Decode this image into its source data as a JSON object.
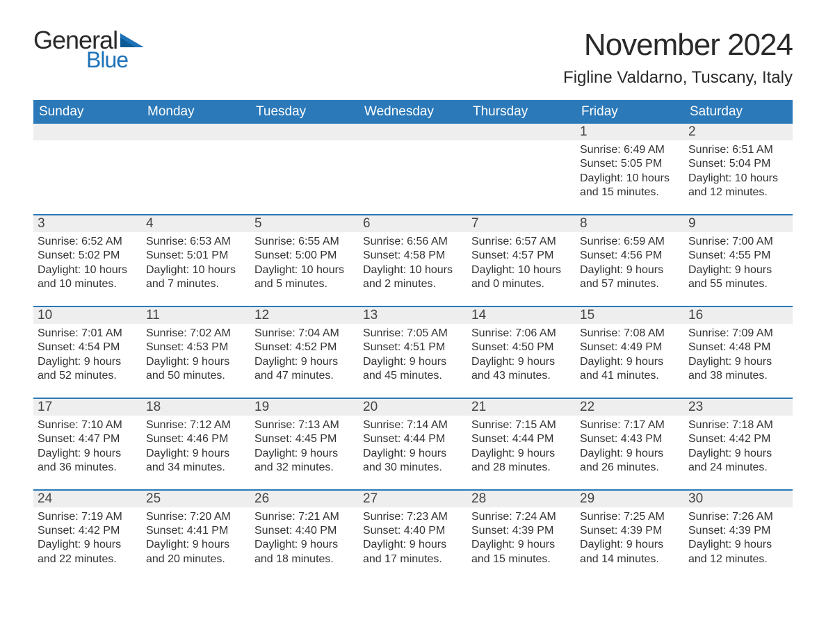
{
  "logo": {
    "general": "General",
    "blue": "Blue"
  },
  "title": "November 2024",
  "location": "Figline Valdarno, Tuscany, Italy",
  "colors": {
    "header_bg": "#2b79b9",
    "header_text": "#ffffff",
    "daynum_bg": "#eeeeee",
    "border": "#2b79b9",
    "logo_blue": "#1d72b8",
    "body_text": "#333333",
    "background": "#ffffff"
  },
  "day_names": [
    "Sunday",
    "Monday",
    "Tuesday",
    "Wednesday",
    "Thursday",
    "Friday",
    "Saturday"
  ],
  "weeks": [
    [
      null,
      null,
      null,
      null,
      null,
      {
        "d": "1",
        "sr": "Sunrise: 6:49 AM",
        "ss": "Sunset: 5:05 PM",
        "dl1": "Daylight: 10 hours",
        "dl2": "and 15 minutes."
      },
      {
        "d": "2",
        "sr": "Sunrise: 6:51 AM",
        "ss": "Sunset: 5:04 PM",
        "dl1": "Daylight: 10 hours",
        "dl2": "and 12 minutes."
      }
    ],
    [
      {
        "d": "3",
        "sr": "Sunrise: 6:52 AM",
        "ss": "Sunset: 5:02 PM",
        "dl1": "Daylight: 10 hours",
        "dl2": "and 10 minutes."
      },
      {
        "d": "4",
        "sr": "Sunrise: 6:53 AM",
        "ss": "Sunset: 5:01 PM",
        "dl1": "Daylight: 10 hours",
        "dl2": "and 7 minutes."
      },
      {
        "d": "5",
        "sr": "Sunrise: 6:55 AM",
        "ss": "Sunset: 5:00 PM",
        "dl1": "Daylight: 10 hours",
        "dl2": "and 5 minutes."
      },
      {
        "d": "6",
        "sr": "Sunrise: 6:56 AM",
        "ss": "Sunset: 4:58 PM",
        "dl1": "Daylight: 10 hours",
        "dl2": "and 2 minutes."
      },
      {
        "d": "7",
        "sr": "Sunrise: 6:57 AM",
        "ss": "Sunset: 4:57 PM",
        "dl1": "Daylight: 10 hours",
        "dl2": "and 0 minutes."
      },
      {
        "d": "8",
        "sr": "Sunrise: 6:59 AM",
        "ss": "Sunset: 4:56 PM",
        "dl1": "Daylight: 9 hours",
        "dl2": "and 57 minutes."
      },
      {
        "d": "9",
        "sr": "Sunrise: 7:00 AM",
        "ss": "Sunset: 4:55 PM",
        "dl1": "Daylight: 9 hours",
        "dl2": "and 55 minutes."
      }
    ],
    [
      {
        "d": "10",
        "sr": "Sunrise: 7:01 AM",
        "ss": "Sunset: 4:54 PM",
        "dl1": "Daylight: 9 hours",
        "dl2": "and 52 minutes."
      },
      {
        "d": "11",
        "sr": "Sunrise: 7:02 AM",
        "ss": "Sunset: 4:53 PM",
        "dl1": "Daylight: 9 hours",
        "dl2": "and 50 minutes."
      },
      {
        "d": "12",
        "sr": "Sunrise: 7:04 AM",
        "ss": "Sunset: 4:52 PM",
        "dl1": "Daylight: 9 hours",
        "dl2": "and 47 minutes."
      },
      {
        "d": "13",
        "sr": "Sunrise: 7:05 AM",
        "ss": "Sunset: 4:51 PM",
        "dl1": "Daylight: 9 hours",
        "dl2": "and 45 minutes."
      },
      {
        "d": "14",
        "sr": "Sunrise: 7:06 AM",
        "ss": "Sunset: 4:50 PM",
        "dl1": "Daylight: 9 hours",
        "dl2": "and 43 minutes."
      },
      {
        "d": "15",
        "sr": "Sunrise: 7:08 AM",
        "ss": "Sunset: 4:49 PM",
        "dl1": "Daylight: 9 hours",
        "dl2": "and 41 minutes."
      },
      {
        "d": "16",
        "sr": "Sunrise: 7:09 AM",
        "ss": "Sunset: 4:48 PM",
        "dl1": "Daylight: 9 hours",
        "dl2": "and 38 minutes."
      }
    ],
    [
      {
        "d": "17",
        "sr": "Sunrise: 7:10 AM",
        "ss": "Sunset: 4:47 PM",
        "dl1": "Daylight: 9 hours",
        "dl2": "and 36 minutes."
      },
      {
        "d": "18",
        "sr": "Sunrise: 7:12 AM",
        "ss": "Sunset: 4:46 PM",
        "dl1": "Daylight: 9 hours",
        "dl2": "and 34 minutes."
      },
      {
        "d": "19",
        "sr": "Sunrise: 7:13 AM",
        "ss": "Sunset: 4:45 PM",
        "dl1": "Daylight: 9 hours",
        "dl2": "and 32 minutes."
      },
      {
        "d": "20",
        "sr": "Sunrise: 7:14 AM",
        "ss": "Sunset: 4:44 PM",
        "dl1": "Daylight: 9 hours",
        "dl2": "and 30 minutes."
      },
      {
        "d": "21",
        "sr": "Sunrise: 7:15 AM",
        "ss": "Sunset: 4:44 PM",
        "dl1": "Daylight: 9 hours",
        "dl2": "and 28 minutes."
      },
      {
        "d": "22",
        "sr": "Sunrise: 7:17 AM",
        "ss": "Sunset: 4:43 PM",
        "dl1": "Daylight: 9 hours",
        "dl2": "and 26 minutes."
      },
      {
        "d": "23",
        "sr": "Sunrise: 7:18 AM",
        "ss": "Sunset: 4:42 PM",
        "dl1": "Daylight: 9 hours",
        "dl2": "and 24 minutes."
      }
    ],
    [
      {
        "d": "24",
        "sr": "Sunrise: 7:19 AM",
        "ss": "Sunset: 4:42 PM",
        "dl1": "Daylight: 9 hours",
        "dl2": "and 22 minutes."
      },
      {
        "d": "25",
        "sr": "Sunrise: 7:20 AM",
        "ss": "Sunset: 4:41 PM",
        "dl1": "Daylight: 9 hours",
        "dl2": "and 20 minutes."
      },
      {
        "d": "26",
        "sr": "Sunrise: 7:21 AM",
        "ss": "Sunset: 4:40 PM",
        "dl1": "Daylight: 9 hours",
        "dl2": "and 18 minutes."
      },
      {
        "d": "27",
        "sr": "Sunrise: 7:23 AM",
        "ss": "Sunset: 4:40 PM",
        "dl1": "Daylight: 9 hours",
        "dl2": "and 17 minutes."
      },
      {
        "d": "28",
        "sr": "Sunrise: 7:24 AM",
        "ss": "Sunset: 4:39 PM",
        "dl1": "Daylight: 9 hours",
        "dl2": "and 15 minutes."
      },
      {
        "d": "29",
        "sr": "Sunrise: 7:25 AM",
        "ss": "Sunset: 4:39 PM",
        "dl1": "Daylight: 9 hours",
        "dl2": "and 14 minutes."
      },
      {
        "d": "30",
        "sr": "Sunrise: 7:26 AM",
        "ss": "Sunset: 4:39 PM",
        "dl1": "Daylight: 9 hours",
        "dl2": "and 12 minutes."
      }
    ]
  ]
}
